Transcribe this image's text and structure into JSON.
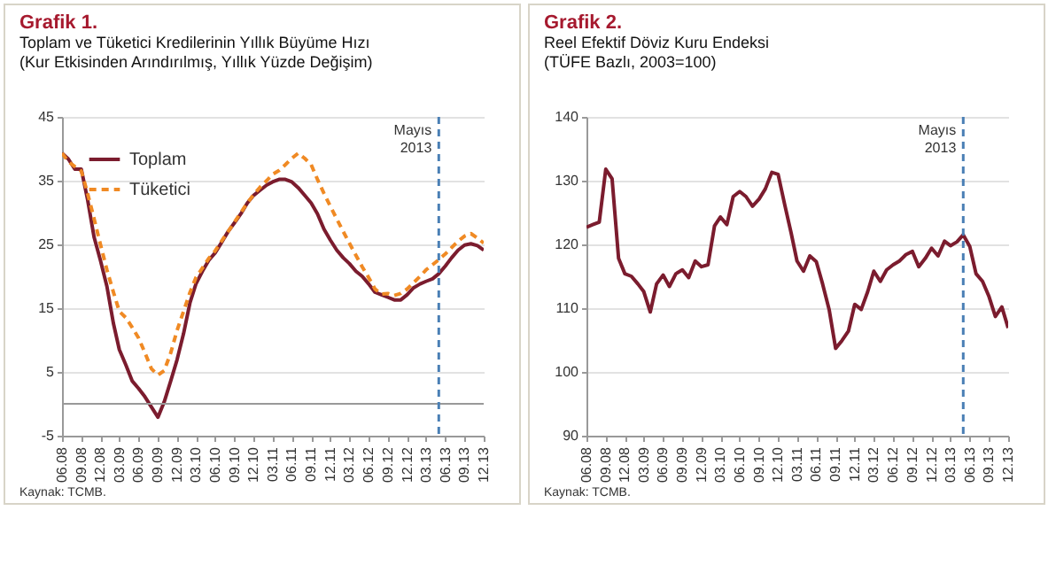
{
  "chart_data": [
    {
      "type": "line",
      "title": "Grafik 1.",
      "subtitle": "Toplam ve Tüketici Kredilerinin Yıllık Büyüme Hızı\n(Kur Etkisinden Arındırılmış, Yıllık Yüzde Değişim)",
      "x": [
        "2008-06",
        "2008-07",
        "2008-08",
        "2008-09",
        "2008-10",
        "2008-11",
        "2008-12",
        "2009-01",
        "2009-02",
        "2009-03",
        "2009-04",
        "2009-05",
        "2009-06",
        "2009-07",
        "2009-08",
        "2009-09",
        "2009-10",
        "2009-11",
        "2009-12",
        "2010-01",
        "2010-02",
        "2010-03",
        "2010-04",
        "2010-05",
        "2010-06",
        "2010-07",
        "2010-08",
        "2010-09",
        "2010-10",
        "2010-11",
        "2010-12",
        "2011-01",
        "2011-02",
        "2011-03",
        "2011-04",
        "2011-05",
        "2011-06",
        "2011-07",
        "2011-08",
        "2011-09",
        "2011-10",
        "2011-11",
        "2011-12",
        "2012-01",
        "2012-02",
        "2012-03",
        "2012-04",
        "2012-05",
        "2012-06",
        "2012-07",
        "2012-08",
        "2012-09",
        "2012-10",
        "2012-11",
        "2012-12",
        "2013-01",
        "2013-02",
        "2013-03",
        "2013-04",
        "2013-05",
        "2013-06",
        "2013-07",
        "2013-08",
        "2013-09",
        "2013-10",
        "2013-11",
        "2013-12"
      ],
      "series": [
        {
          "name": "Toplam",
          "color": "#7b1c2e",
          "line_style": "solid",
          "values": [
            39.3,
            38.4,
            36.8,
            36.8,
            32,
            26.1,
            22.5,
            18.4,
            12.6,
            8.5,
            6.1,
            3.6,
            2.4,
            1.1,
            -0.5,
            -2.1,
            0.3,
            3.6,
            6.9,
            11,
            15.9,
            18.8,
            20.8,
            22.5,
            23.7,
            25.3,
            27,
            28.4,
            29.8,
            31.5,
            32.7,
            33.5,
            34.3,
            34.8,
            35.2,
            35.2,
            34.8,
            33.9,
            32.7,
            31.5,
            29.8,
            27.4,
            25.7,
            24.1,
            22.9,
            22,
            20.8,
            20,
            18.8,
            17.5,
            17.1,
            16.7,
            16.3,
            16.3,
            17.1,
            18.2,
            18.8,
            19.2,
            19.6,
            20.4,
            21.6,
            22.9,
            24.1,
            24.9,
            25.1,
            24.8,
            24.1
          ]
        },
        {
          "name": "Tüketici",
          "color": "#f08a24",
          "line_style": "dashed",
          "values": [
            39.3,
            38,
            37.2,
            36.5,
            33,
            29,
            25,
            21,
            17.5,
            14.5,
            13.5,
            12,
            10.3,
            8,
            5.5,
            4.5,
            5.2,
            8,
            11.5,
            14.5,
            17.5,
            19.8,
            21.3,
            22.8,
            24,
            25.5,
            27,
            28.5,
            30,
            31.5,
            32.8,
            34,
            35,
            36,
            36.6,
            37.5,
            38.5,
            39.3,
            38.5,
            37.5,
            35.2,
            33,
            31,
            29,
            27,
            25.2,
            23.3,
            21.5,
            19.8,
            18,
            17.2,
            17.3,
            17,
            17.3,
            18,
            19,
            20,
            21,
            21.8,
            22.6,
            23.5,
            24.5,
            25.5,
            26.3,
            26.7,
            26,
            25.2
          ]
        }
      ],
      "xlim": [
        "2008-06",
        "2013-12"
      ],
      "xticks": [
        {
          "value": "2008-06",
          "label": "06.08"
        },
        {
          "value": "2008-09",
          "label": "09.08"
        },
        {
          "value": "2008-12",
          "label": "12.08"
        },
        {
          "value": "2009-03",
          "label": "03.09"
        },
        {
          "value": "2009-06",
          "label": "06.09"
        },
        {
          "value": "2009-09",
          "label": "09.09"
        },
        {
          "value": "2009-12",
          "label": "12.09"
        },
        {
          "value": "2010-03",
          "label": "03.10"
        },
        {
          "value": "2010-06",
          "label": "06.10"
        },
        {
          "value": "2010-09",
          "label": "09.10"
        },
        {
          "value": "2010-12",
          "label": "12.10"
        },
        {
          "value": "2011-03",
          "label": "03.11"
        },
        {
          "value": "2011-06",
          "label": "06.11"
        },
        {
          "value": "2011-09",
          "label": "09.11"
        },
        {
          "value": "2011-12",
          "label": "12.11"
        },
        {
          "value": "2012-03",
          "label": "03.12"
        },
        {
          "value": "2012-06",
          "label": "06.12"
        },
        {
          "value": "2012-09",
          "label": "09.12"
        },
        {
          "value": "2012-12",
          "label": "12.12"
        },
        {
          "value": "2013-03",
          "label": "03.13"
        },
        {
          "value": "2013-06",
          "label": "06.13"
        },
        {
          "value": "2013-09",
          "label": "09.13"
        },
        {
          "value": "2013-12",
          "label": "12.13"
        }
      ],
      "ylim": [
        -5,
        45
      ],
      "yticks": [
        -5,
        5,
        15,
        25,
        35,
        45
      ],
      "grid": "y",
      "legend": "top left",
      "ref_lines": [
        {
          "axis": "y",
          "value": 0,
          "color": "#999999",
          "line_style": "solid"
        },
        {
          "axis": "x",
          "value": "2013-05",
          "label": "Mayıs 2013",
          "color": "#4a7fb5",
          "line_style": "dashed"
        }
      ],
      "annotations": [
        "Kaynak: TCMB."
      ]
    },
    {
      "type": "line",
      "title": "Grafik 2.",
      "subtitle": "Reel Efektif Döviz Kuru Endeksi\n(TÜFE Bazlı, 2003=100)",
      "x": [
        "2008-06",
        "2008-07",
        "2008-08",
        "2008-09",
        "2008-10",
        "2008-11",
        "2008-12",
        "2009-01",
        "2009-02",
        "2009-03",
        "2009-04",
        "2009-05",
        "2009-06",
        "2009-07",
        "2009-08",
        "2009-09",
        "2009-10",
        "2009-11",
        "2009-12",
        "2010-01",
        "2010-02",
        "2010-03",
        "2010-04",
        "2010-05",
        "2010-06",
        "2010-07",
        "2010-08",
        "2010-09",
        "2010-10",
        "2010-11",
        "2010-12",
        "2011-01",
        "2011-02",
        "2011-03",
        "2011-04",
        "2011-05",
        "2011-06",
        "2011-07",
        "2011-08",
        "2011-09",
        "2011-10",
        "2011-11",
        "2011-12",
        "2012-01",
        "2012-02",
        "2012-03",
        "2012-04",
        "2012-05",
        "2012-06",
        "2012-07",
        "2012-08",
        "2012-09",
        "2012-10",
        "2012-11",
        "2012-12",
        "2013-01",
        "2013-02",
        "2013-03",
        "2013-04",
        "2013-05",
        "2013-06",
        "2013-07",
        "2013-08",
        "2013-09",
        "2013-10",
        "2013-11",
        "2013-12"
      ],
      "series": [
        {
          "color": "#7b1c2e",
          "line_style": "solid",
          "values": [
            122.7,
            123.1,
            123.5,
            131.8,
            130.3,
            117.8,
            115.4,
            115,
            113.8,
            112.6,
            109.4,
            113.8,
            115.2,
            113.4,
            115.4,
            116,
            114.8,
            117.4,
            116.5,
            116.8,
            122.9,
            124.3,
            123.1,
            127.5,
            128.3,
            127.5,
            126,
            127.1,
            128.7,
            131.3,
            131,
            126.3,
            121.8,
            117.4,
            115.8,
            118.2,
            117.3,
            113.8,
            109.8,
            103.7,
            104.9,
            106.4,
            110.6,
            109.8,
            112.6,
            115.8,
            114.2,
            116,
            116.8,
            117.4,
            118.4,
            118.9,
            116.5,
            117.8,
            119.4,
            118.2,
            120.5,
            119.8,
            120.4,
            121.5,
            119.7,
            115.4,
            114.2,
            111.8,
            108.7,
            110.2,
            106.9
          ]
        }
      ],
      "xlim": [
        "2008-06",
        "2013-12"
      ],
      "xticks": [
        {
          "value": "2008-06",
          "label": "06.08"
        },
        {
          "value": "2008-09",
          "label": "09.08"
        },
        {
          "value": "2008-12",
          "label": "12.08"
        },
        {
          "value": "2009-03",
          "label": "03.09"
        },
        {
          "value": "2009-06",
          "label": "06.09"
        },
        {
          "value": "2009-09",
          "label": "09.09"
        },
        {
          "value": "2009-12",
          "label": "12.09"
        },
        {
          "value": "2010-03",
          "label": "03.10"
        },
        {
          "value": "2010-06",
          "label": "06.10"
        },
        {
          "value": "2010-09",
          "label": "09.10"
        },
        {
          "value": "2010-12",
          "label": "12.10"
        },
        {
          "value": "2011-03",
          "label": "03.11"
        },
        {
          "value": "2011-06",
          "label": "06.11"
        },
        {
          "value": "2011-09",
          "label": "09.11"
        },
        {
          "value": "2011-12",
          "label": "12.11"
        },
        {
          "value": "2012-03",
          "label": "03.12"
        },
        {
          "value": "2012-06",
          "label": "06.12"
        },
        {
          "value": "2012-09",
          "label": "09.12"
        },
        {
          "value": "2012-12",
          "label": "12.12"
        },
        {
          "value": "2013-03",
          "label": "03.13"
        },
        {
          "value": "2013-06",
          "label": "06.13"
        },
        {
          "value": "2013-09",
          "label": "09.13"
        },
        {
          "value": "2013-12",
          "label": "12.13"
        }
      ],
      "ylim": [
        90,
        140
      ],
      "yticks": [
        90,
        100,
        110,
        120,
        130,
        140
      ],
      "grid": "y",
      "ref_lines": [
        {
          "axis": "x",
          "value": "2013-05",
          "label": "Mayıs 2013",
          "color": "#4a7fb5",
          "line_style": "dashed"
        }
      ],
      "annotations": [
        "Kaynak: TCMB."
      ]
    }
  ]
}
